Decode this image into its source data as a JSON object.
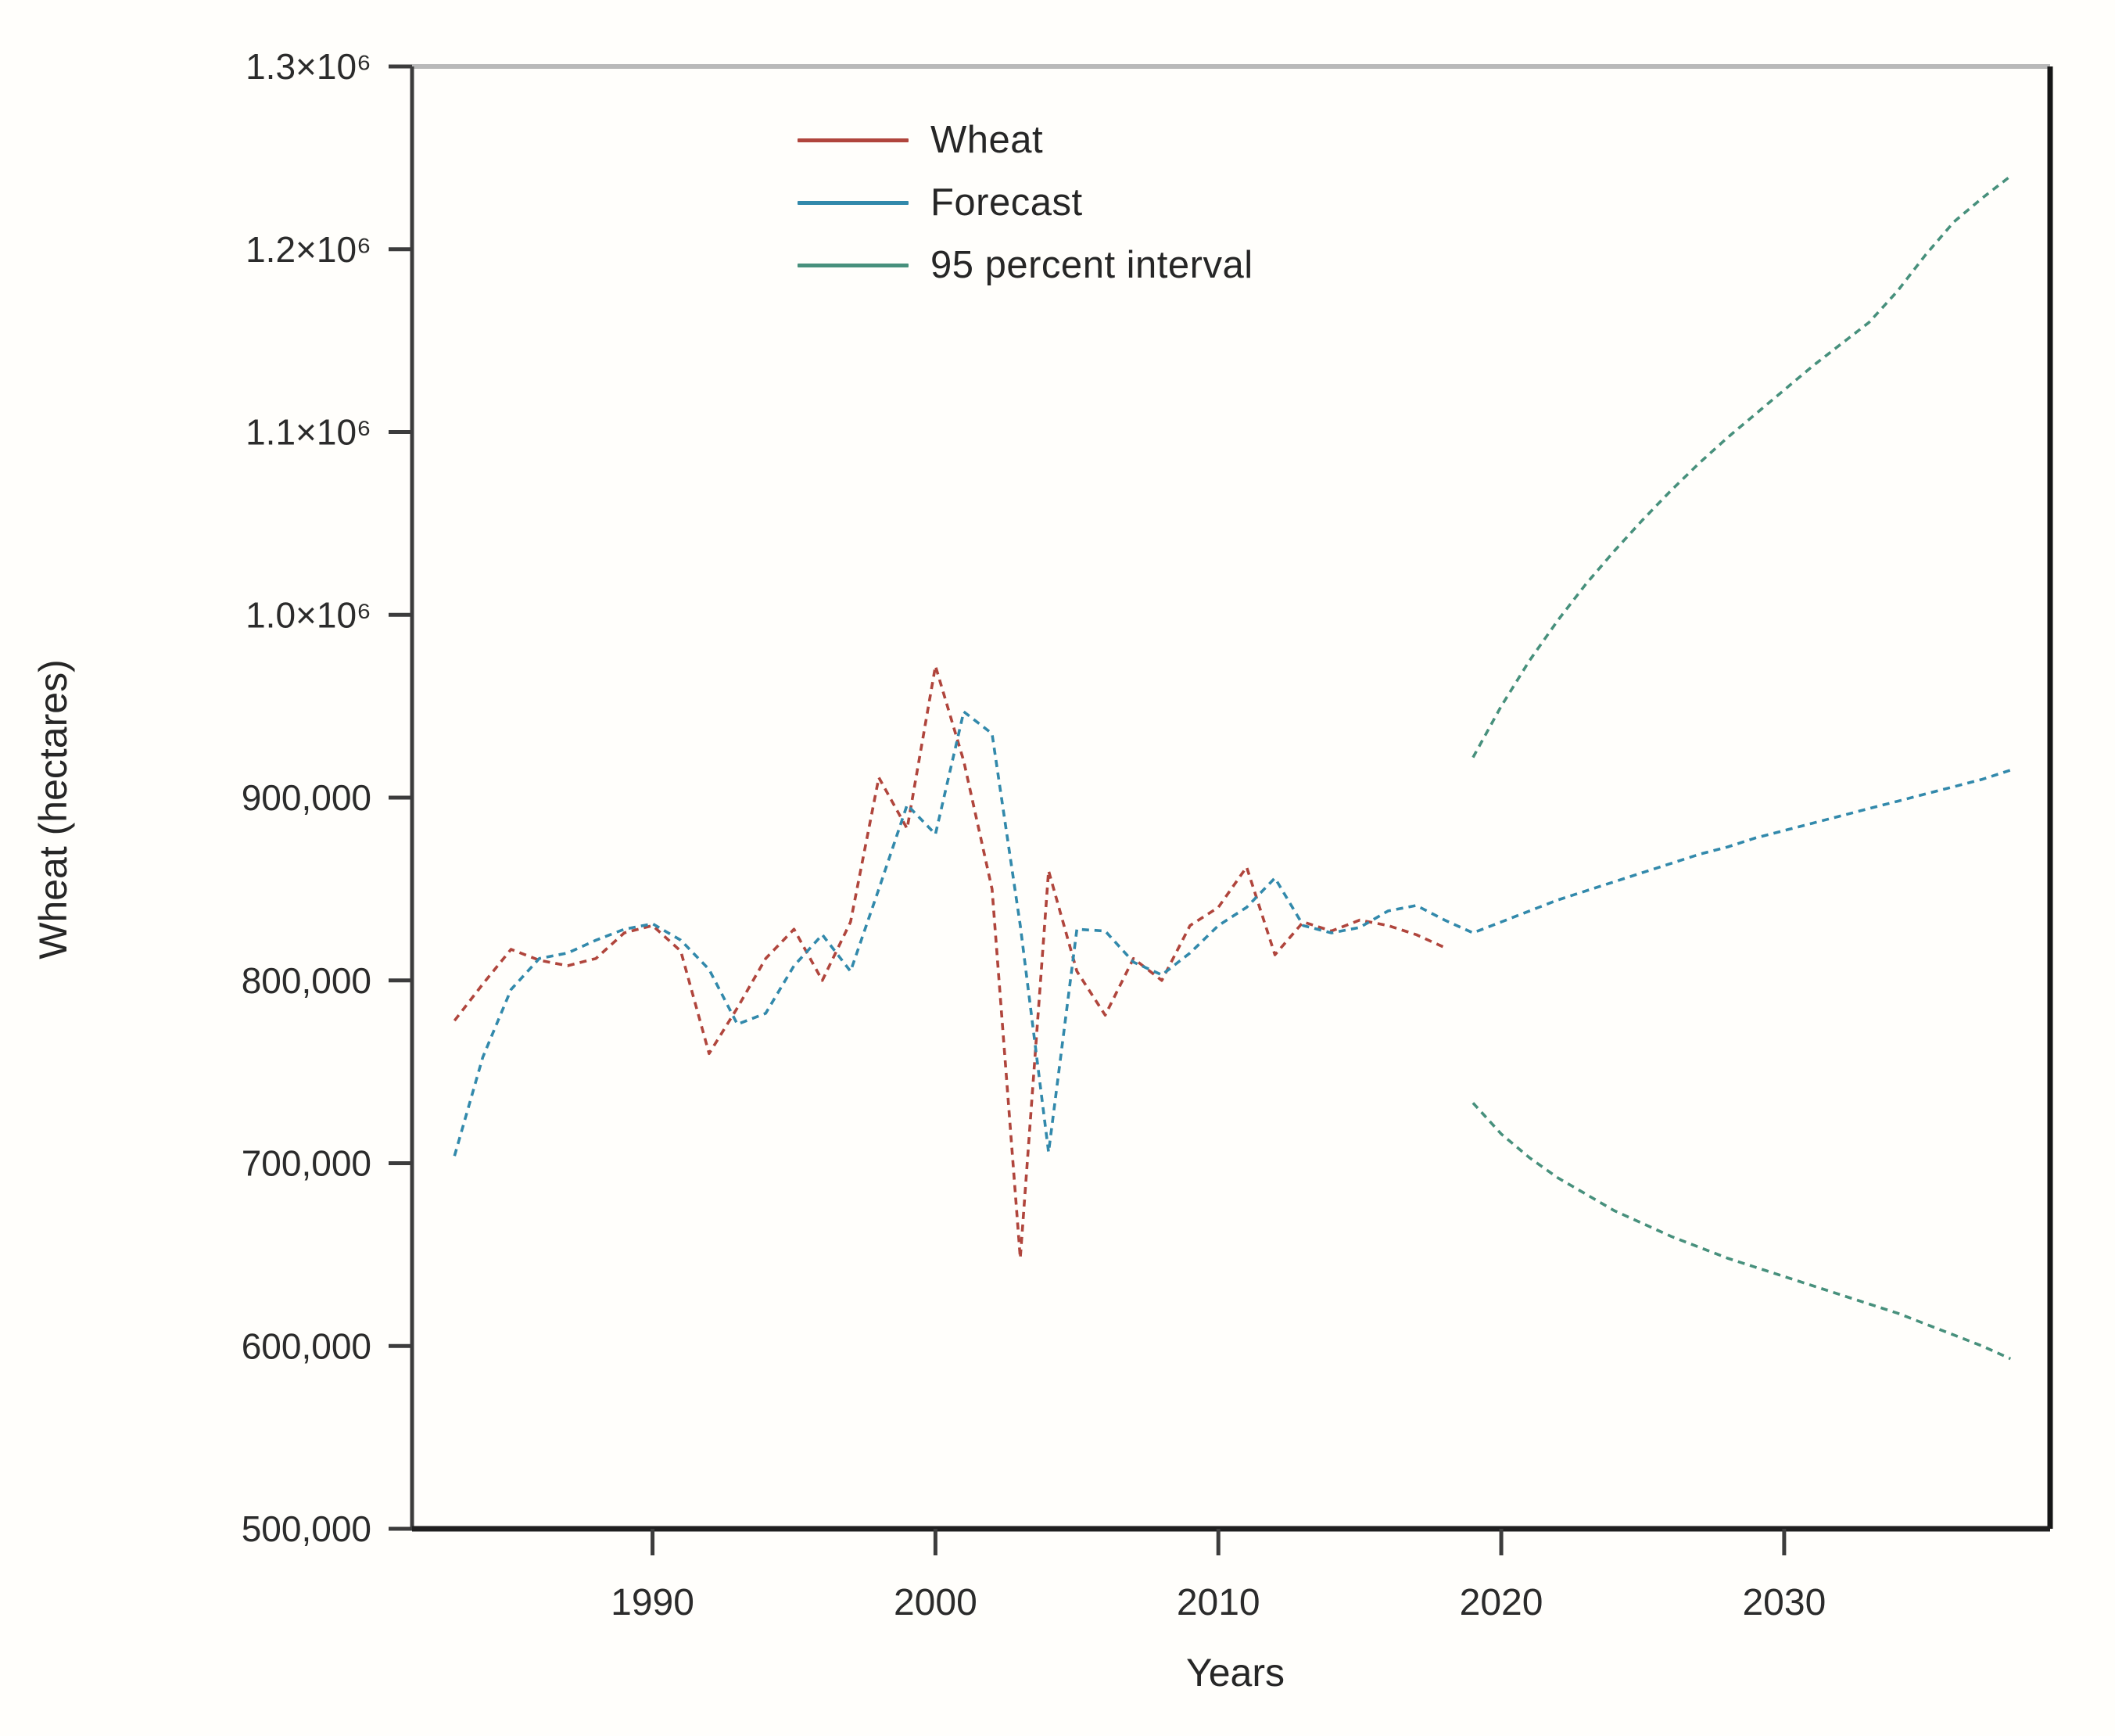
{
  "figure": {
    "xlabel": "Years",
    "ylabel": "Wheat (hectares)"
  },
  "chart_data": {
    "type": "line",
    "title": "",
    "xlabel": "Years",
    "ylabel": "Wheat (hectares)",
    "xlim": [
      1981.5,
      2039.4
    ],
    "ylim": [
      500000,
      1300000
    ],
    "grid": false,
    "legend_position": "top-left-inside",
    "x_ticks": [
      1990,
      2000,
      2010,
      2020,
      2030
    ],
    "y_ticks": [
      {
        "value": 500000,
        "label": "500,000"
      },
      {
        "value": 600000,
        "label": "600,000"
      },
      {
        "value": 700000,
        "label": "700,000"
      },
      {
        "value": 800000,
        "label": "800,000"
      },
      {
        "value": 900000,
        "label": "900,000"
      },
      {
        "value": 1000000,
        "label": "1.0×10⁶"
      },
      {
        "value": 1100000,
        "label": "1.1×10⁶"
      },
      {
        "value": 1200000,
        "label": "1.2×10⁶"
      },
      {
        "value": 1300000,
        "label": "1.3×10⁶"
      }
    ],
    "legend": [
      {
        "label": "Wheat",
        "color": "#b0453c"
      },
      {
        "label": "Forecast",
        "color": "#3289ab"
      },
      {
        "label": "95 percent interval",
        "color": "#47907c"
      }
    ],
    "series": [
      {
        "name": "Wheat",
        "color": "#b0453c",
        "x": [
          1983,
          1984,
          1985,
          1986,
          1987,
          1988,
          1989,
          1990,
          1991,
          1992,
          1993,
          1994,
          1995,
          1996,
          1997,
          1998,
          1999,
          2000,
          2001,
          2002,
          2003,
          2004,
          2005,
          2006,
          2007,
          2008,
          2009,
          2010,
          2011,
          2012,
          2013,
          2014,
          2015,
          2016,
          2017,
          2018
        ],
        "values": [
          778000,
          798000,
          817000,
          811000,
          808000,
          812000,
          826000,
          830000,
          816000,
          760000,
          785000,
          812000,
          828000,
          800000,
          832000,
          911000,
          883000,
          972000,
          920000,
          850000,
          648000,
          860000,
          805000,
          781000,
          812000,
          800000,
          830000,
          840000,
          862000,
          814000,
          832000,
          827000,
          833000,
          830000,
          825000,
          818000
        ]
      },
      {
        "name": "Forecast",
        "color": "#3289ab",
        "x": [
          1983,
          1984,
          1985,
          1986,
          1987,
          1988,
          1989,
          1990,
          1991,
          1992,
          1993,
          1994,
          1995,
          1996,
          1997,
          1998,
          1999,
          2000,
          2001,
          2002,
          2003,
          2004,
          2005,
          2006,
          2007,
          2008,
          2009,
          2010,
          2011,
          2012,
          2013,
          2014,
          2015,
          2016,
          2017,
          2018,
          2019,
          2020,
          2021,
          2022,
          2023,
          2024,
          2025,
          2026,
          2027,
          2028,
          2029,
          2030,
          2031,
          2032,
          2033,
          2034,
          2035,
          2036,
          2037,
          2038
        ],
        "values": [
          704000,
          758000,
          795000,
          812000,
          815000,
          822000,
          828000,
          831000,
          822000,
          806000,
          776000,
          782000,
          808000,
          825000,
          805000,
          850000,
          896000,
          880000,
          947000,
          935000,
          830000,
          706000,
          828000,
          827000,
          810000,
          803000,
          815000,
          830000,
          840000,
          856000,
          830000,
          826000,
          829000,
          838000,
          841000,
          833000,
          826000,
          832000,
          838000,
          844000,
          849000,
          854000,
          859000,
          864000,
          869000,
          873000,
          878000,
          882000,
          886000,
          890000,
          894000,
          898000,
          902000,
          906000,
          910000,
          915000
        ]
      },
      {
        "name": "95 percent interval (upper)",
        "color": "#47907c",
        "x": [
          2019,
          2020,
          2021,
          2022,
          2023,
          2024,
          2025,
          2026,
          2027,
          2028,
          2029,
          2030,
          2031,
          2032,
          2033,
          2034,
          2035,
          2036,
          2037,
          2038
        ],
        "values": [
          922000,
          950000,
          975000,
          997000,
          1017000,
          1035000,
          1052000,
          1068000,
          1083000,
          1097000,
          1110000,
          1123000,
          1136000,
          1148000,
          1160000,
          1177000,
          1197000,
          1215000,
          1228000,
          1240000
        ]
      },
      {
        "name": "95 percent interval (lower)",
        "color": "#47907c",
        "x": [
          2019,
          2020,
          2021,
          2022,
          2023,
          2024,
          2025,
          2026,
          2027,
          2028,
          2029,
          2030,
          2031,
          2032,
          2033,
          2034,
          2035,
          2036,
          2037,
          2038
        ],
        "values": [
          733000,
          716000,
          703000,
          692000,
          683000,
          674000,
          667000,
          660000,
          654000,
          648000,
          643000,
          638000,
          633000,
          628000,
          623000,
          618000,
          612000,
          606000,
          600000,
          593000
        ]
      }
    ],
    "colors": {
      "text": "#2b2b2b",
      "frame_top": "#b9b9b9",
      "frame_right": "#161616",
      "frame_left": "#3c3c3c",
      "frame_bottom": "#1f1f1f",
      "background": "#fffefb"
    }
  }
}
